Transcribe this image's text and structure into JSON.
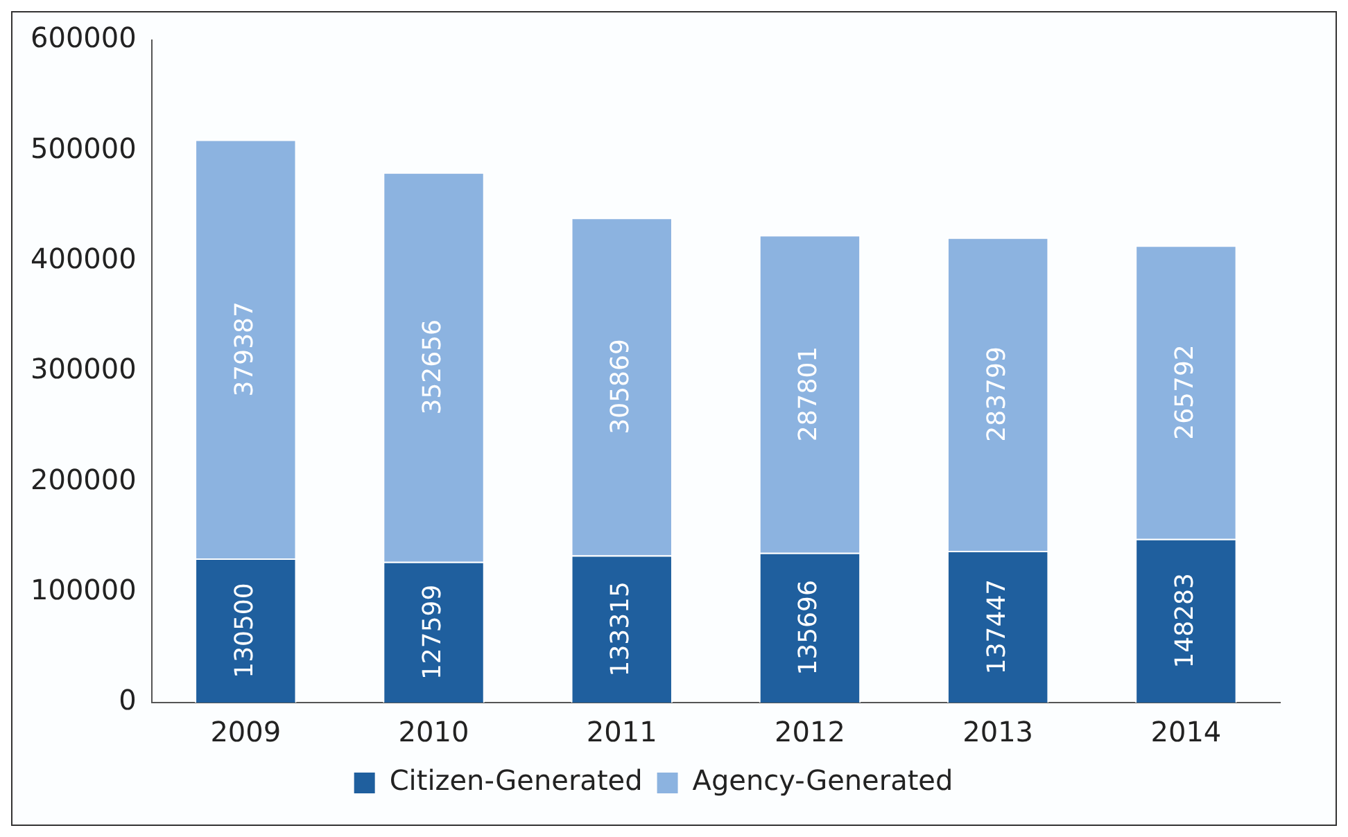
{
  "chart_data": {
    "type": "bar",
    "stacked": true,
    "categories": [
      "2009",
      "2010",
      "2011",
      "2012",
      "2013",
      "2014"
    ],
    "series": [
      {
        "name": "Citizen-Generated",
        "color": "#1f5f9e",
        "values": [
          130500,
          127599,
          133315,
          135696,
          137447,
          148283
        ]
      },
      {
        "name": "Agency-Generated",
        "color": "#8cb3e0",
        "values": [
          379387,
          352656,
          305869,
          287801,
          283799,
          265792
        ]
      }
    ],
    "ylim": [
      0,
      600000
    ],
    "yticks": [
      0,
      100000,
      200000,
      300000,
      400000,
      500000,
      600000
    ],
    "grid": false,
    "legend": "bottom",
    "data_labels": true
  }
}
